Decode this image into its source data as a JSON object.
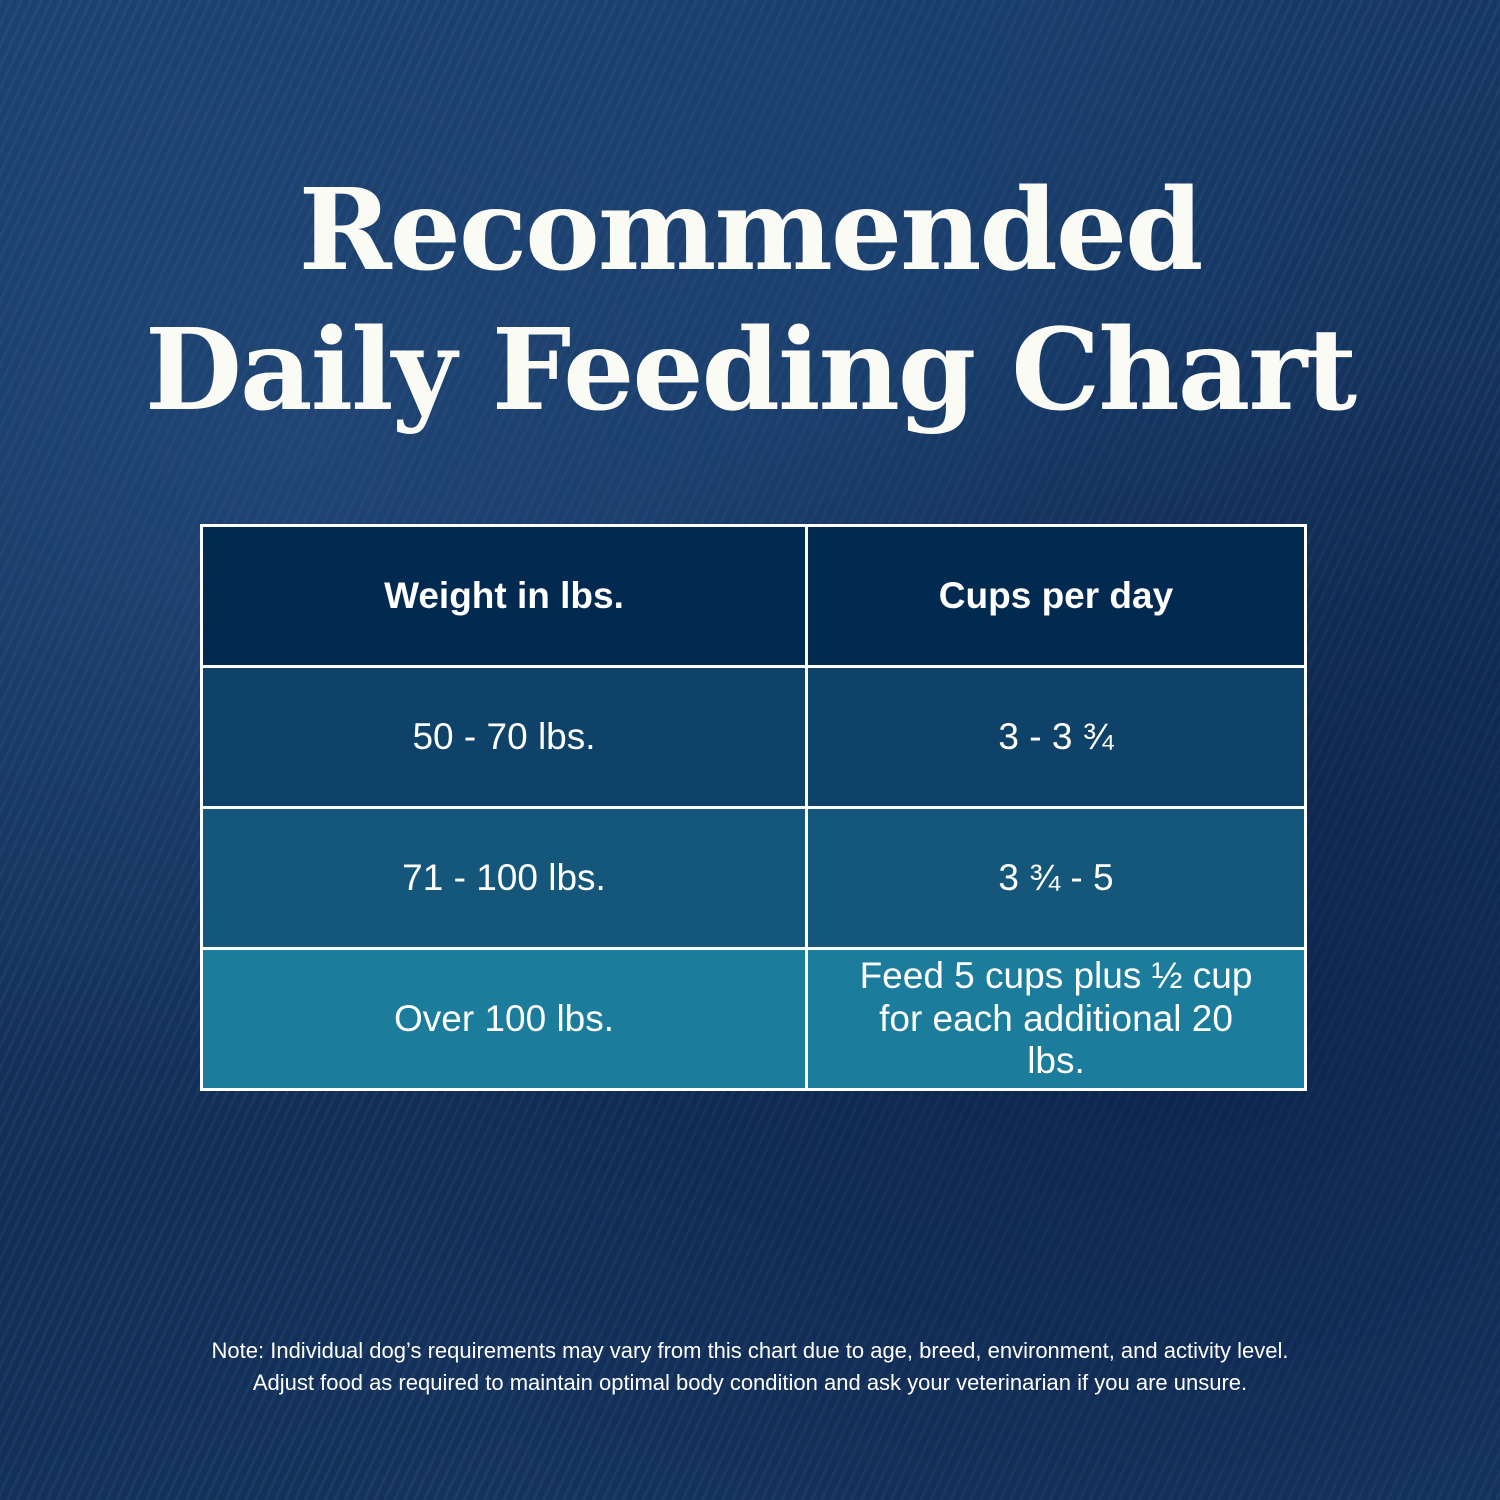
{
  "title": {
    "line1": "Recommended",
    "line2": "Daily Feeding Chart"
  },
  "table": {
    "headers": [
      "Weight in lbs.",
      "Cups per day"
    ],
    "rows": [
      [
        "50 - 70 lbs.",
        "3 - 3 ¾"
      ],
      [
        "71 - 100 lbs.",
        "3 ¾ - 5"
      ],
      [
        "Over 100 lbs.",
        "Feed 5 cups plus ½ cup for each additional 20 lbs."
      ]
    ]
  },
  "note": {
    "line1": "Note: Individual dog’s requirements may vary from this chart due to age, breed, environment, and activity level.",
    "line2": "Adjust food as required to maintain optimal body condition and ask your veterinarian if you are unsure."
  },
  "colors": {
    "header": "#022a50",
    "row1": "#0f4268",
    "row2": "#15577a",
    "row3": "#1b7c9c",
    "background": "#173a66"
  }
}
